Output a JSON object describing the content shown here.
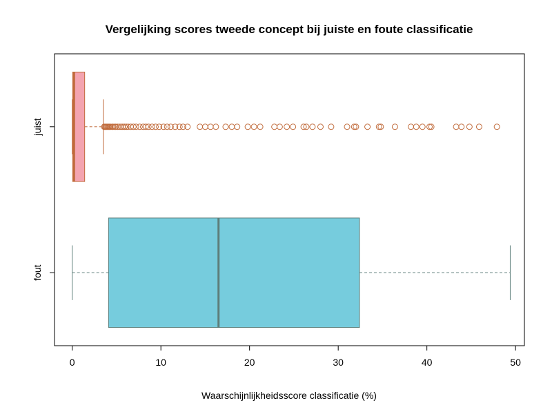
{
  "chart_data": {
    "type": "boxplot",
    "orientation": "horizontal",
    "title": "Vergelijking scores tweede concept bij juiste en foute classificatie",
    "xlabel": "Waarschijnlijkheidsscore classificatie (%)",
    "ylabel": "",
    "xlim": [
      -2,
      51
    ],
    "x_ticks": [
      "0",
      "10",
      "20",
      "30",
      "40",
      "50"
    ],
    "categories": [
      "juist",
      "fout"
    ],
    "series": [
      {
        "name": "juist",
        "min": 0,
        "q1": 0.05,
        "median": 0.2,
        "q3": 1.4,
        "max": 3.5,
        "fill": "#f4a4b0",
        "border": "#c06a3a",
        "outliers": [
          3.6,
          3.7,
          3.8,
          3.9,
          4.0,
          4.1,
          4.2,
          4.3,
          4.5,
          4.6,
          4.8,
          4.9,
          5.1,
          5.3,
          5.5,
          5.7,
          5.9,
          6.1,
          6.3,
          6.6,
          6.9,
          7.2,
          7.6,
          8.0,
          8.3,
          8.6,
          9.0,
          9.4,
          9.8,
          10.3,
          10.7,
          11.1,
          11.6,
          12.1,
          12.5,
          13.0,
          14.4,
          15.0,
          15.6,
          16.2,
          17.3,
          18.0,
          18.6,
          19.8,
          20.5,
          21.2,
          22.8,
          23.4,
          24.2,
          24.9,
          26.1,
          26.4,
          27.1,
          28.0,
          29.2,
          31.0,
          31.8,
          32.0,
          33.3,
          34.6,
          34.8,
          36.4,
          38.2,
          38.8,
          39.5,
          40.3,
          40.5,
          43.3,
          43.9,
          44.8,
          45.9,
          47.9
        ]
      },
      {
        "name": "fout",
        "min": 0,
        "q1": 4.1,
        "median": 16.5,
        "q3": 32.4,
        "max": 49.4,
        "fill": "#76ccdd",
        "border": "#5e7e7a",
        "outliers": []
      }
    ]
  }
}
